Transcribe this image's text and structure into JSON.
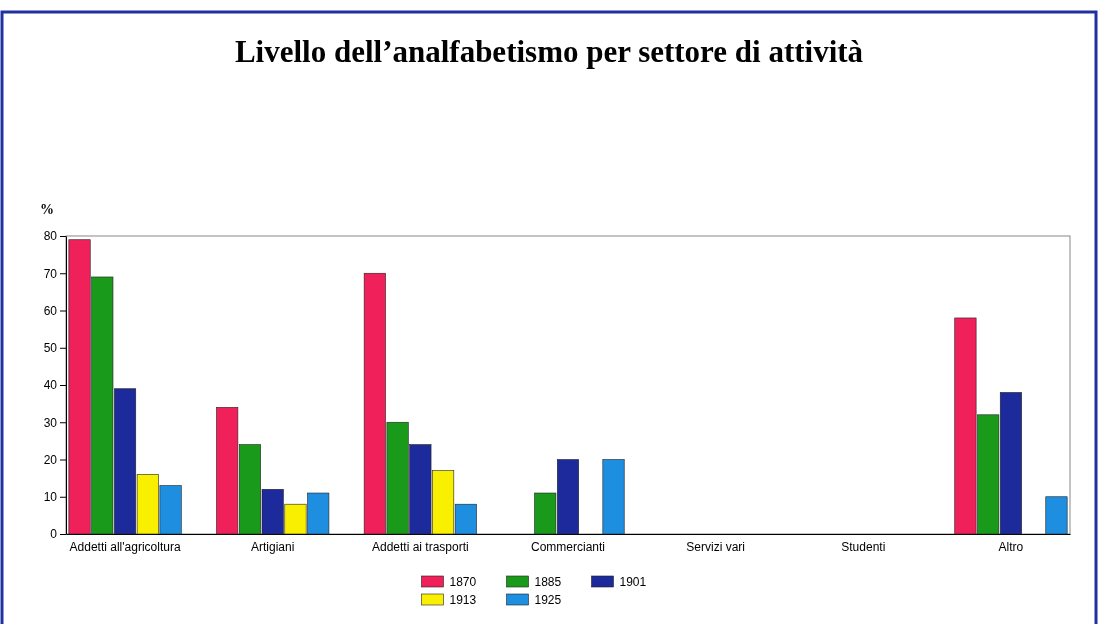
{
  "chart_data": {
    "type": "bar",
    "title": "Livello dell’analfabetismo per settore di attività",
    "ylabel": "%",
    "categories": [
      "Addetti all'agricoltura",
      "Artigiani",
      "Addetti ai trasporti",
      "Commercianti",
      "Servizi vari",
      "Studenti",
      "Altro"
    ],
    "series": [
      {
        "name": "1870",
        "color": "#f0205a",
        "values": [
          79,
          34,
          70,
          null,
          null,
          null,
          58
        ]
      },
      {
        "name": "1885",
        "color": "#1a9a1a",
        "values": [
          69,
          24,
          30,
          11,
          null,
          null,
          32
        ]
      },
      {
        "name": "1901",
        "color": "#1c2a9c",
        "values": [
          39,
          12,
          24,
          20,
          null,
          null,
          38
        ]
      },
      {
        "name": "1913",
        "color": "#f8f000",
        "values": [
          16,
          8,
          17,
          null,
          null,
          null,
          null
        ]
      },
      {
        "name": "1925",
        "color": "#1e8ee0",
        "values": [
          13,
          11,
          8,
          20,
          null,
          null,
          10
        ]
      }
    ],
    "ylim": [
      0,
      80
    ],
    "yticks": [
      0,
      10,
      20,
      30,
      40,
      50,
      60,
      70,
      80
    ],
    "grid": false,
    "legend": "bottom"
  }
}
